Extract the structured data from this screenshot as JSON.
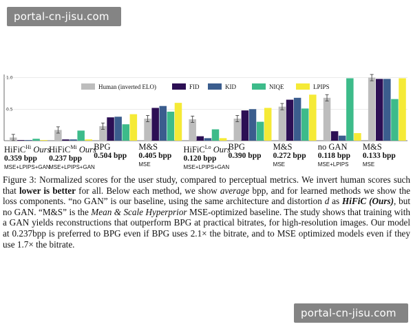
{
  "watermarks": {
    "top": "portal-cn-jisu.com",
    "bottom": "portal-cn-jisu.com"
  },
  "chart_data": {
    "type": "bar",
    "categories": [
      "HiFiC Hi Ours",
      "HiFiC Mi Ours",
      "BPG",
      "M&S",
      "HiFiC Lo Ours",
      "BPG",
      "M&S",
      "no GAN",
      "M&S"
    ],
    "yticks": [
      "0.5",
      "1.0"
    ],
    "ylim": [
      0,
      1.05
    ],
    "legend_position": "top",
    "series": [
      {
        "name": "Human (inverted ELO)",
        "color": "#bdbdbd",
        "values": [
          0.05,
          0.17,
          0.23,
          0.35,
          0.34,
          0.35,
          0.54,
          0.68,
          1.0
        ],
        "errors": [
          0.05,
          0.05,
          0.05,
          0.05,
          0.05,
          0.05,
          0.05,
          0.05,
          0.05
        ]
      },
      {
        "name": "FID",
        "color": "#2c0f54",
        "values": [
          0.01,
          0.02,
          0.37,
          0.52,
          0.07,
          0.48,
          0.65,
          0.15,
          0.98
        ]
      },
      {
        "name": "KID",
        "color": "#3b5d8e",
        "values": [
          0.01,
          0.02,
          0.38,
          0.55,
          0.04,
          0.5,
          0.68,
          0.08,
          0.98
        ]
      },
      {
        "name": "NIQE",
        "color": "#3dbb8a",
        "values": [
          0.03,
          0.16,
          0.26,
          0.46,
          0.18,
          0.3,
          0.51,
          0.99,
          0.66
        ]
      },
      {
        "name": "LPIPS",
        "color": "#f5ea36",
        "values": [
          0.01,
          0.02,
          0.42,
          0.6,
          0.04,
          0.52,
          0.73,
          0.12,
          0.99
        ]
      }
    ],
    "method_labels": [
      {
        "name": "HiFiC",
        "sup": "Hi",
        "suffix": "Ours",
        "bpp": "0.359 bpp",
        "loss": "MSE+LPIPS+GAN"
      },
      {
        "name": "HiFiC",
        "sup": "Mi",
        "suffix": "Ours",
        "bpp": "0.237 bpp",
        "loss": "MSE+LPIPS+GAN"
      },
      {
        "name": "BPG",
        "sup": "",
        "suffix": "",
        "bpp": "0.504 bpp",
        "loss": ""
      },
      {
        "name": "M&S",
        "sup": "",
        "suffix": "",
        "bpp": "0.405 bpp",
        "loss": "MSE"
      },
      {
        "name": "HiFiC",
        "sup": "Lo",
        "suffix": "Ours",
        "bpp": "0.120 bpp",
        "loss": "MSE+LPIPS+GAN"
      },
      {
        "name": "BPG",
        "sup": "",
        "suffix": "",
        "bpp": "0.390 bpp",
        "loss": ""
      },
      {
        "name": "M&S",
        "sup": "",
        "suffix": "",
        "bpp": "0.272 bpp",
        "loss": "MSE"
      },
      {
        "name": "no GAN",
        "sup": "",
        "suffix": "",
        "bpp": "0.118 bpp",
        "loss": "MSE+LPIPS"
      },
      {
        "name": "M&S",
        "sup": "",
        "suffix": "",
        "bpp": "0.133 bpp",
        "loss": "MSE"
      }
    ]
  },
  "caption": {
    "p1": "Figure 3: Normalized scores for the user study, compared to perceptual metrics. We invert human scores such that ",
    "p1_bold": "lower is better",
    "p2": " for all. Below each method, we show ",
    "p2_italic": "average",
    "p3": " bpp, and for learned methods we show the loss components. “no GAN” is our baseline, using the same architecture and distortion ",
    "p3_italic": "d",
    "p4": " as ",
    "p4_italic": "HiFiC (Ours)",
    "p5": ", but no GAN. “M&S” is the ",
    "p5_italic": "Mean & Scale Hyperprior",
    "p6": " MSE-optimized baseline. The study shows that training with a GAN yields reconstructions that outperform BPG at practical bitrates, for high-resolution images. Our model at 0.237bpp is preferred to BPG even if BPG uses 2.1× the bitrate, and to MSE optimized models even if they use 1.7× the bitrate."
  }
}
